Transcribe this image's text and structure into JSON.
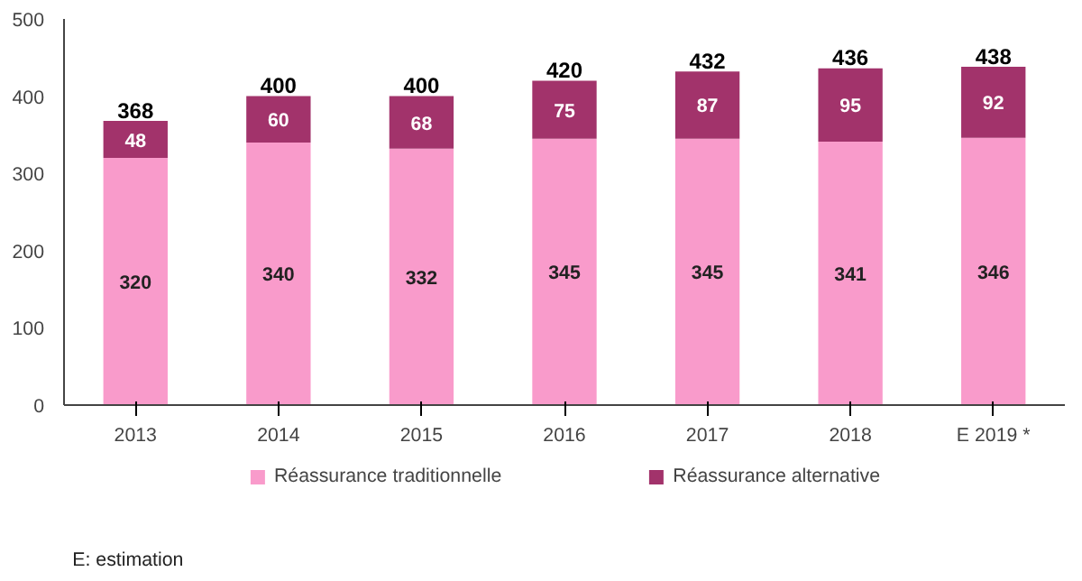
{
  "chart_data": {
    "type": "bar",
    "stacked": true,
    "categories": [
      "2013",
      "2014",
      "2015",
      "2016",
      "2017",
      "2018",
      "E 2019 *"
    ],
    "series": [
      {
        "name": "Réassurance traditionnelle",
        "color": "#f99bcb",
        "values": [
          320,
          340,
          332,
          345,
          345,
          341,
          346
        ]
      },
      {
        "name": "Réassurance alternative",
        "color": "#a2336b",
        "values": [
          48,
          60,
          68,
          75,
          87,
          95,
          92
        ]
      }
    ],
    "totals": [
      "368",
      "400",
      "400",
      "420",
      "432",
      "436",
      "438"
    ],
    "data_labels": true,
    "ylim": [
      0,
      500
    ],
    "yticks": [
      0,
      100,
      200,
      300,
      400,
      500
    ],
    "grid": false,
    "legend": "bottom",
    "annotations": [
      "E: estimation"
    ]
  }
}
